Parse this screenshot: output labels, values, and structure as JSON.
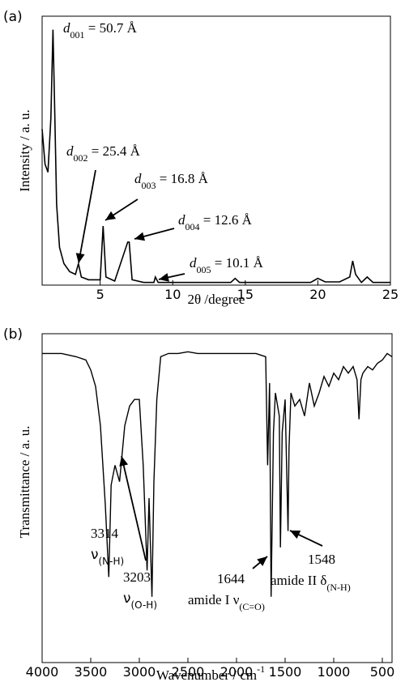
{
  "chart_data": [
    {
      "panel": "(a)",
      "type": "line",
      "xlabel": "2θ /degree",
      "ylabel": "Intensity / a. u.",
      "xlim": [
        1,
        25
      ],
      "ylim": [
        0,
        100
      ],
      "y_ticks_shown": false,
      "x_ticks": [
        "5",
        "10",
        "15",
        "20",
        "25"
      ],
      "grid": false,
      "series": [
        {
          "x": [
            1.0,
            1.2,
            1.4,
            1.6,
            1.75,
            1.85,
            2.0,
            2.2,
            2.5,
            2.9,
            3.3,
            3.5,
            3.7,
            4.2,
            5.0,
            5.2,
            5.4,
            6.0,
            6.9,
            7.0,
            7.2,
            8.0,
            8.7,
            8.8,
            9.0,
            10.0,
            12.0,
            14.0,
            14.3,
            14.6,
            16.0,
            18.0,
            19.5,
            20.0,
            20.5,
            21.5,
            22.2,
            22.4,
            22.6,
            23.0,
            23.4,
            23.8,
            25.0
          ],
          "y": [
            58,
            45,
            42,
            62,
            95,
            70,
            30,
            14,
            8,
            5,
            4,
            8,
            3,
            2,
            2,
            22,
            3,
            1.5,
            16,
            16,
            2,
            1,
            1,
            3,
            1,
            1,
            1,
            1,
            2.5,
            1,
            1,
            1,
            1,
            2.5,
            1.2,
            1.2,
            3,
            9,
            4,
            1,
            3,
            1,
            1
          ]
        }
      ],
      "annotations": [
        {
          "prefix": "d",
          "sub": "001",
          "text": " = 50.7 Å",
          "x": 1.75
        },
        {
          "prefix": "d",
          "sub": "002",
          "text": " = 25.4 Å",
          "x": 3.5
        },
        {
          "prefix": "d",
          "sub": "003",
          "text": " = 16.8 Å",
          "x": 5.2
        },
        {
          "prefix": "d",
          "sub": "004",
          "text": " = 12.6 Å",
          "x": 7.0
        },
        {
          "prefix": "d",
          "sub": "005",
          "text": " = 10.1 Å",
          "x": 8.8
        }
      ]
    },
    {
      "panel": "(b)",
      "type": "line",
      "xlabel": "Wavenumber / cm",
      "xlabel_sup": "-1",
      "ylabel": "Transmittance / a. u.",
      "xlim": [
        4000,
        400
      ],
      "ylim": [
        0,
        100
      ],
      "y_ticks_shown": false,
      "x_ticks": [
        "4000",
        "3500",
        "3000",
        "2500",
        "2000",
        "1500",
        "1000",
        "500"
      ],
      "grid": false,
      "series": [
        {
          "x": [
            4000,
            3800,
            3650,
            3550,
            3500,
            3450,
            3400,
            3350,
            3314,
            3290,
            3250,
            3203,
            3150,
            3100,
            3050,
            3000,
            2960,
            2920,
            2900,
            2870,
            2850,
            2820,
            2780,
            2700,
            2600,
            2500,
            2400,
            2300,
            2200,
            2000,
            1800,
            1700,
            1680,
            1660,
            1644,
            1620,
            1600,
            1560,
            1548,
            1530,
            1500,
            1470,
            1460,
            1440,
            1400,
            1350,
            1300,
            1250,
            1200,
            1150,
            1100,
            1050,
            1000,
            950,
            900,
            850,
            800,
            760,
            740,
            720,
            700,
            650,
            600,
            550,
            500,
            450,
            400
          ],
          "y": [
            94,
            94,
            93,
            92,
            89,
            84,
            72,
            48,
            26,
            54,
            60,
            55,
            72,
            78,
            80,
            80,
            60,
            28,
            50,
            20,
            55,
            80,
            93,
            94,
            94,
            94.5,
            94,
            94,
            94,
            94,
            94,
            93,
            60,
            85,
            20,
            70,
            82,
            75,
            35,
            70,
            80,
            40,
            65,
            82,
            78,
            80,
            75,
            85,
            78,
            82,
            87,
            84,
            88,
            86,
            90,
            88,
            90,
            86,
            74,
            86,
            88,
            90,
            89,
            91,
            92,
            94,
            93
          ]
        }
      ],
      "annotations": [
        {
          "text": "3314",
          "label": "ν",
          "sub": "(N-H)",
          "x": 3314
        },
        {
          "text": "3203",
          "label": "ν",
          "sub": "(O-H)",
          "x": 3203
        },
        {
          "text": "1644",
          "label": "amide I ν",
          "sub": "(C=O)",
          "x": 1644
        },
        {
          "text": "1548",
          "label": "amide II δ",
          "sub": "(N-H)",
          "x": 1548
        }
      ]
    }
  ]
}
